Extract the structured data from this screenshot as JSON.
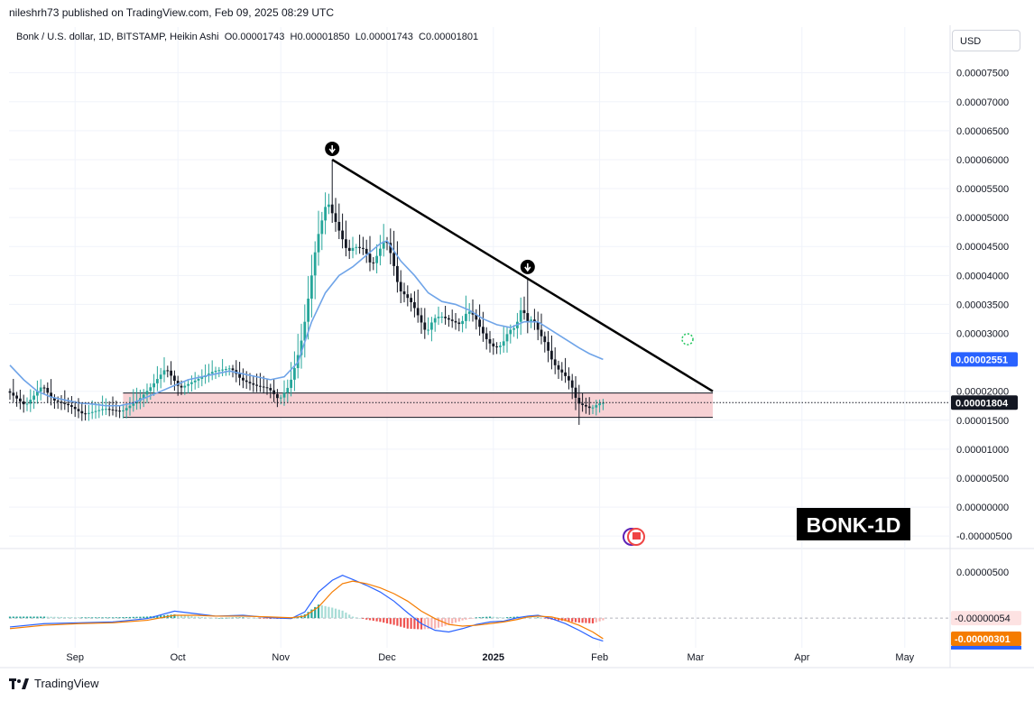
{
  "header": {
    "publish_text": "nileshrh73 published on TradingView.com, Feb 09, 2025 08:29 UTC",
    "currency_label": "USD"
  },
  "legend": {
    "symbol": "Bonk / U.S. dollar, 1D, BITSTAMP, Heikin Ashi",
    "open": "O0.00001743",
    "high": "H0.00001850",
    "low": "L0.00001743",
    "close": "C0.00001801"
  },
  "footer": {
    "logo_text": "TradingView"
  },
  "colors": {
    "up": "#26a69a",
    "down": "#131722",
    "ma": "#6fa4e8",
    "support_fill": "#f6c9cc",
    "support_line": "#131722",
    "macd": "#2962ff",
    "signal": "#f57c00",
    "hist_up": "#26a69a",
    "hist_down": "#ef5350",
    "price_badge": "#131722",
    "ma_badge": "#2962ff"
  },
  "chart_data": {
    "type": "candlestick",
    "watermark": "BONK-1D",
    "price_axis": {
      "ticks": [
        "0.00007500",
        "0.00007000",
        "0.00006500",
        "0.00006000",
        "0.00005500",
        "0.00005000",
        "0.00004500",
        "0.00004000",
        "0.00003500",
        "0.00003000",
        "0.00002000",
        "0.00001500",
        "0.00001000",
        "0.00000500",
        "0.00000000",
        "-0.00000500"
      ],
      "ticks_values": [
        7.5,
        7.0,
        6.5,
        6.0,
        5.5,
        5.0,
        4.5,
        4.0,
        3.5,
        3.0,
        2.0,
        1.5,
        1.0,
        0.5,
        0.0,
        -0.5
      ],
      "unit_scale": "1e-5",
      "range": [
        -0.7,
        7.9
      ]
    },
    "current_price": {
      "label": "0.00001804",
      "value": 1.804
    },
    "ma_value": {
      "label": "0.00002551",
      "value": 2.551
    },
    "time_axis": {
      "labels": [
        "Sep",
        "Oct",
        "Nov",
        "Dec",
        "2025",
        "Feb",
        "Mar",
        "Apr",
        "May"
      ],
      "day_index": [
        19,
        49,
        79,
        110,
        141,
        172,
        200,
        231,
        261
      ]
    },
    "support_zone": {
      "low": 1.55,
      "high": 1.97,
      "start_day": 33,
      "end_day": 205
    },
    "trendline": {
      "start": {
        "day": 94,
        "price": 6.0
      },
      "end": {
        "day": 205,
        "price": 2.0
      }
    },
    "markers": [
      {
        "day": 94,
        "price": 6.0
      },
      {
        "day": 151,
        "price": 3.96
      }
    ],
    "price_anchors": [
      [
        0,
        2.0
      ],
      [
        5,
        1.75
      ],
      [
        10,
        2.1
      ],
      [
        13,
        1.85
      ],
      [
        18,
        1.75
      ],
      [
        22,
        1.6
      ],
      [
        28,
        1.7
      ],
      [
        33,
        1.65
      ],
      [
        38,
        1.85
      ],
      [
        42,
        2.1
      ],
      [
        46,
        2.4
      ],
      [
        50,
        2.05
      ],
      [
        55,
        2.2
      ],
      [
        60,
        2.35
      ],
      [
        65,
        2.4
      ],
      [
        68,
        2.2
      ],
      [
        72,
        2.1
      ],
      [
        76,
        2.05
      ],
      [
        79,
        1.85
      ],
      [
        82,
        2.1
      ],
      [
        84,
        2.5
      ],
      [
        86,
        3.0
      ],
      [
        88,
        3.8
      ],
      [
        90,
        4.6
      ],
      [
        93,
        5.3
      ],
      [
        95,
        5.0
      ],
      [
        97,
        4.7
      ],
      [
        99,
        4.4
      ],
      [
        101,
        4.5
      ],
      [
        104,
        4.45
      ],
      [
        106,
        4.15
      ],
      [
        108,
        4.4
      ],
      [
        110,
        4.65
      ],
      [
        112,
        4.3
      ],
      [
        114,
        3.75
      ],
      [
        116,
        3.65
      ],
      [
        118,
        3.5
      ],
      [
        120,
        3.25
      ],
      [
        122,
        3.0
      ],
      [
        124,
        3.25
      ],
      [
        126,
        3.3
      ],
      [
        128,
        3.25
      ],
      [
        130,
        3.2
      ],
      [
        132,
        3.15
      ],
      [
        134,
        3.4
      ],
      [
        136,
        3.3
      ],
      [
        138,
        3.05
      ],
      [
        140,
        2.85
      ],
      [
        142,
        2.75
      ],
      [
        144,
        2.8
      ],
      [
        146,
        3.05
      ],
      [
        148,
        3.1
      ],
      [
        150,
        3.5
      ],
      [
        151,
        3.2
      ],
      [
        153,
        3.25
      ],
      [
        155,
        3.0
      ],
      [
        157,
        2.8
      ],
      [
        158,
        2.6
      ],
      [
        160,
        2.4
      ],
      [
        162,
        2.3
      ],
      [
        164,
        2.15
      ],
      [
        166,
        1.8
      ],
      [
        168,
        1.75
      ],
      [
        170,
        1.7
      ],
      [
        172,
        1.78
      ],
      [
        173,
        1.8
      ]
    ],
    "moving_average": [
      [
        0,
        2.45
      ],
      [
        4,
        2.2
      ],
      [
        8,
        2.0
      ],
      [
        12,
        1.9
      ],
      [
        16,
        1.85
      ],
      [
        20,
        1.8
      ],
      [
        24,
        1.78
      ],
      [
        28,
        1.75
      ],
      [
        32,
        1.75
      ],
      [
        36,
        1.8
      ],
      [
        40,
        1.9
      ],
      [
        44,
        2.0
      ],
      [
        48,
        2.1
      ],
      [
        52,
        2.2
      ],
      [
        56,
        2.25
      ],
      [
        60,
        2.3
      ],
      [
        64,
        2.35
      ],
      [
        68,
        2.3
      ],
      [
        72,
        2.25
      ],
      [
        76,
        2.2
      ],
      [
        80,
        2.25
      ],
      [
        84,
        2.5
      ],
      [
        88,
        3.2
      ],
      [
        92,
        3.7
      ],
      [
        96,
        4.0
      ],
      [
        100,
        4.15
      ],
      [
        104,
        4.35
      ],
      [
        108,
        4.55
      ],
      [
        110,
        4.6
      ],
      [
        114,
        4.25
      ],
      [
        118,
        4.0
      ],
      [
        122,
        3.7
      ],
      [
        126,
        3.55
      ],
      [
        130,
        3.5
      ],
      [
        134,
        3.4
      ],
      [
        138,
        3.25
      ],
      [
        142,
        3.15
      ],
      [
        146,
        3.1
      ],
      [
        150,
        3.2
      ],
      [
        154,
        3.2
      ],
      [
        158,
        3.05
      ],
      [
        162,
        2.9
      ],
      [
        166,
        2.75
      ],
      [
        169,
        2.65
      ],
      [
        173,
        2.551
      ]
    ],
    "macd_panel": {
      "ticks": [
        "0.00000500"
      ],
      "ticks_values": [
        5.0
      ],
      "zero_label": "-0.00000054",
      "signal_label": "-0.00000301",
      "macd_values": [
        [
          0,
          -1.6
        ],
        [
          10,
          -1.2
        ],
        [
          20,
          -1.1
        ],
        [
          30,
          -1.0
        ],
        [
          40,
          -0.6
        ],
        [
          48,
          0.3
        ],
        [
          54,
          0.0
        ],
        [
          60,
          -0.3
        ],
        [
          68,
          -0.2
        ],
        [
          76,
          -0.5
        ],
        [
          82,
          -0.6
        ],
        [
          86,
          0.2
        ],
        [
          90,
          2.6
        ],
        [
          94,
          4.0
        ],
        [
          97,
          4.6
        ],
        [
          100,
          4.1
        ],
        [
          104,
          3.4
        ],
        [
          108,
          2.6
        ],
        [
          112,
          1.5
        ],
        [
          116,
          0.1
        ],
        [
          120,
          -1.2
        ],
        [
          124,
          -2.0
        ],
        [
          128,
          -2.2
        ],
        [
          132,
          -1.8
        ],
        [
          136,
          -1.3
        ],
        [
          140,
          -1.0
        ],
        [
          144,
          -0.9
        ],
        [
          148,
          -0.5
        ],
        [
          151,
          -0.3
        ],
        [
          154,
          -0.2
        ],
        [
          158,
          -0.6
        ],
        [
          162,
          -1.2
        ],
        [
          166,
          -2.0
        ],
        [
          170,
          -2.9
        ],
        [
          173,
          -3.3
        ]
      ],
      "signal_values": [
        [
          0,
          -1.8
        ],
        [
          10,
          -1.4
        ],
        [
          20,
          -1.2
        ],
        [
          30,
          -1.1
        ],
        [
          40,
          -0.8
        ],
        [
          48,
          -0.2
        ],
        [
          54,
          -0.2
        ],
        [
          60,
          -0.3
        ],
        [
          68,
          -0.3
        ],
        [
          76,
          -0.4
        ],
        [
          82,
          -0.5
        ],
        [
          86,
          -0.3
        ],
        [
          90,
          0.8
        ],
        [
          94,
          2.6
        ],
        [
          97,
          3.6
        ],
        [
          100,
          3.9
        ],
        [
          104,
          3.6
        ],
        [
          108,
          3.1
        ],
        [
          112,
          2.4
        ],
        [
          116,
          1.5
        ],
        [
          120,
          0.3
        ],
        [
          124,
          -0.6
        ],
        [
          128,
          -1.3
        ],
        [
          132,
          -1.5
        ],
        [
          136,
          -1.4
        ],
        [
          140,
          -1.2
        ],
        [
          144,
          -1.0
        ],
        [
          148,
          -0.7
        ],
        [
          151,
          -0.4
        ],
        [
          154,
          -0.3
        ],
        [
          158,
          -0.4
        ],
        [
          162,
          -0.8
        ],
        [
          166,
          -1.4
        ],
        [
          170,
          -2.2
        ],
        [
          173,
          -3.01
        ]
      ],
      "range": [
        -4.1,
        7.6
      ]
    }
  }
}
